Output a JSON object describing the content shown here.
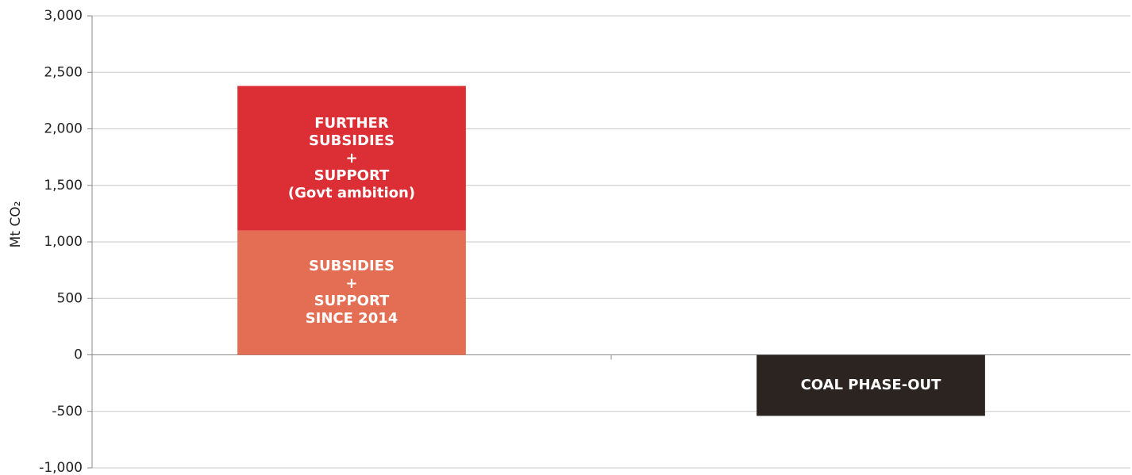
{
  "chart_data": {
    "type": "bar",
    "stacked": true,
    "y_label": "Mt CO₂",
    "categories": [
      null,
      null
    ],
    "series": [
      {
        "name": "SUBSIDIES\n+\nSUPPORT\nSINCE 2014",
        "color": "#e36e53",
        "values": [
          1100,
          null
        ]
      },
      {
        "name": "FURTHER\nSUBSIDIES\n+\nSUPPORT\n(Govt ambition)",
        "color": "#dc2f35",
        "values": [
          1280,
          null
        ]
      },
      {
        "name": "COAL PHASE-OUT",
        "color": "#2b2421",
        "values": [
          null,
          -540
        ]
      }
    ],
    "ylim": [
      -1000,
      3000
    ],
    "yticks": [
      {
        "value": -1000,
        "label": "-1,000"
      },
      -500,
      0,
      500,
      {
        "value": 1000,
        "label": "1,000"
      },
      {
        "value": 1500,
        "label": "1,500"
      },
      {
        "value": 2000,
        "label": "2,000"
      },
      {
        "value": 2500,
        "label": "2,500"
      },
      {
        "value": 3000,
        "label": "3,000"
      }
    ],
    "grid": true
  }
}
